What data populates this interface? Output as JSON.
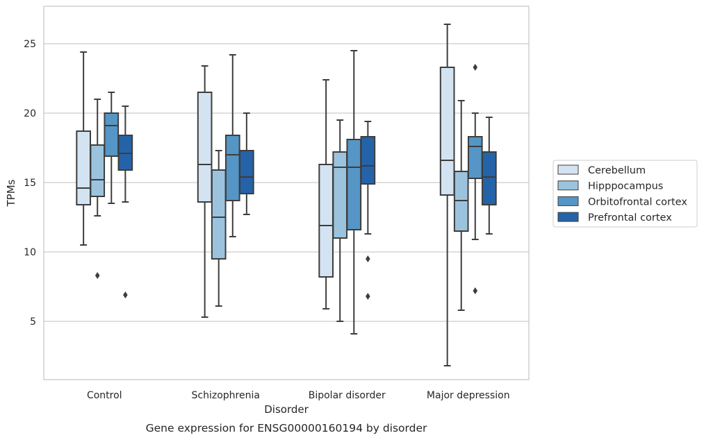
{
  "chart_data": {
    "type": "boxplot",
    "title": "Gene expression for ENSG00000160194 by disorder",
    "xlabel": "Disorder",
    "ylabel": "TPMs",
    "ylim": [
      0.8,
      27.7
    ],
    "yticks": [
      5,
      10,
      15,
      20,
      25
    ],
    "grid": "horizontal",
    "legend_position": "right",
    "categories": [
      "Control",
      "Schizophrenia",
      "Bipolar disorder",
      "Major depression"
    ],
    "series": [
      {
        "name": "Cerebellum",
        "color": "#d3e3f1",
        "boxes": [
          {
            "whislo": 10.5,
            "q1": 13.4,
            "med": 14.6,
            "q3": 18.7,
            "whishi": 24.4,
            "fliers": []
          },
          {
            "whislo": 5.3,
            "q1": 13.6,
            "med": 16.3,
            "q3": 21.5,
            "whishi": 23.4,
            "fliers": []
          },
          {
            "whislo": 5.9,
            "q1": 8.2,
            "med": 11.9,
            "q3": 16.3,
            "whishi": 22.4,
            "fliers": []
          },
          {
            "whislo": 1.8,
            "q1": 14.1,
            "med": 16.6,
            "q3": 23.3,
            "whishi": 26.4,
            "fliers": []
          }
        ]
      },
      {
        "name": "Hipppocampus",
        "color": "#9bc3dd",
        "boxes": [
          {
            "whislo": 12.6,
            "q1": 14.0,
            "med": 15.2,
            "q3": 17.7,
            "whishi": 21.0,
            "fliers": [
              8.3
            ]
          },
          {
            "whislo": 6.1,
            "q1": 9.5,
            "med": 12.5,
            "q3": 15.9,
            "whishi": 17.3,
            "fliers": []
          },
          {
            "whislo": 5.0,
            "q1": 11.0,
            "med": 16.1,
            "q3": 17.2,
            "whishi": 19.5,
            "fliers": []
          },
          {
            "whislo": 5.8,
            "q1": 11.5,
            "med": 13.7,
            "q3": 15.8,
            "whishi": 20.9,
            "fliers": []
          }
        ]
      },
      {
        "name": "Orbitofrontal cortex",
        "color": "#5596c6",
        "boxes": [
          {
            "whislo": 13.5,
            "q1": 16.9,
            "med": 19.1,
            "q3": 20.0,
            "whishi": 21.5,
            "fliers": []
          },
          {
            "whislo": 11.1,
            "q1": 13.7,
            "med": 17.0,
            "q3": 18.4,
            "whishi": 24.2,
            "fliers": []
          },
          {
            "whislo": 4.1,
            "q1": 11.6,
            "med": 16.1,
            "q3": 18.1,
            "whishi": 24.5,
            "fliers": []
          },
          {
            "whislo": 10.9,
            "q1": 15.3,
            "med": 17.6,
            "q3": 18.3,
            "whishi": 20.0,
            "fliers": [
              7.2,
              23.3
            ]
          }
        ]
      },
      {
        "name": "Prefrontal cortex",
        "color": "#2563a8",
        "boxes": [
          {
            "whislo": 13.6,
            "q1": 15.9,
            "med": 17.1,
            "q3": 18.4,
            "whishi": 20.5,
            "fliers": [
              6.9
            ]
          },
          {
            "whislo": 12.7,
            "q1": 14.2,
            "med": 15.4,
            "q3": 17.3,
            "whishi": 20.0,
            "fliers": []
          },
          {
            "whislo": 11.3,
            "q1": 14.9,
            "med": 16.2,
            "q3": 18.3,
            "whishi": 19.4,
            "fliers": [
              9.5,
              6.8
            ]
          },
          {
            "whislo": 11.3,
            "q1": 13.4,
            "med": 15.4,
            "q3": 17.2,
            "whishi": 19.7,
            "fliers": []
          }
        ]
      }
    ]
  }
}
